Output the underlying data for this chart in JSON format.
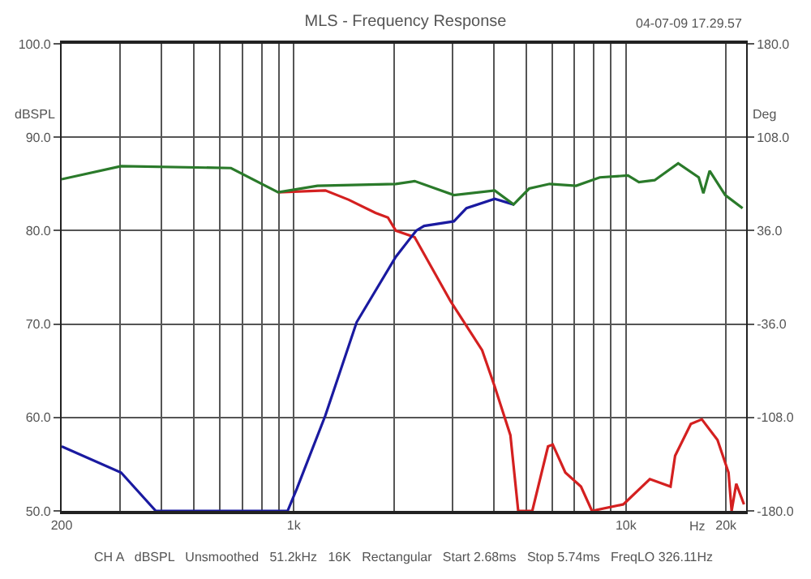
{
  "chart_data": {
    "type": "line",
    "title": "MLS - Frequency Response",
    "xlabel": "Hz",
    "ylabel": "dBSPL",
    "y2label": "Deg",
    "annotations": [
      "04-07-09 17.29.57",
      "CH A   dBSPL   Unsmoothed   51.2kHz   16K   Rectangular   Start 2.68ms   Stop 5.74ms   FreqLO 326.11Hz"
    ],
    "log": "x",
    "grid": true,
    "marker": "none",
    "line_style": "solid",
    "xlim": [
      200,
      23000
    ],
    "xticks": [
      200,
      {
        "value": 300,
        "label": null
      },
      {
        "value": 400,
        "label": null
      },
      {
        "value": 500,
        "label": null
      },
      {
        "value": 600,
        "label": null
      },
      {
        "value": 700,
        "label": null
      },
      {
        "value": 800,
        "label": null
      },
      {
        "value": 900,
        "label": null
      },
      {
        "value": 1000,
        "label": "1k"
      },
      {
        "value": 2000,
        "label": null
      },
      {
        "value": 3000,
        "label": null
      },
      {
        "value": 4000,
        "label": null
      },
      {
        "value": 5000,
        "label": null
      },
      {
        "value": 6000,
        "label": null
      },
      {
        "value": 7000,
        "label": null
      },
      {
        "value": 8000,
        "label": null
      },
      {
        "value": 9000,
        "label": null
      },
      {
        "value": 10000,
        "label": "10k"
      },
      {
        "value": 20000,
        "label": "20k"
      }
    ],
    "ylim": [
      50,
      100
    ],
    "yticks": [
      {
        "value": 50,
        "label": "50.0"
      },
      {
        "value": 60,
        "label": "60.0"
      },
      {
        "value": 70,
        "label": "70.0"
      },
      {
        "value": 80,
        "label": "80.0"
      },
      {
        "value": 90,
        "label": "90.0"
      },
      {
        "value": 100,
        "label": "100.0"
      }
    ],
    "y2lim": [
      -180,
      180
    ],
    "y2ticks": [
      {
        "value": -180,
        "label": "-180.0"
      },
      {
        "value": -108,
        "label": "-108.0"
      },
      {
        "value": -36,
        "label": "-36.0"
      },
      {
        "value": 36,
        "label": "36.0"
      },
      {
        "value": 108,
        "label": "108.0"
      },
      {
        "value": 180,
        "label": "180.0"
      }
    ],
    "series": [
      {
        "color": "#d42020",
        "x": [
          897,
          1244,
          1464,
          1761,
          1920,
          2028,
          2311,
          2969,
          3690,
          4026,
          4488,
          4738,
          5224,
          5826,
          6020,
          6568,
          7320,
          7900,
          9820,
          11800,
          13620,
          14060,
          15680,
          16920,
          18860,
          20360,
          20800,
          21480,
          22660
        ],
        "values": [
          84.1,
          84.3,
          83.3,
          81.9,
          81.4,
          80,
          79.3,
          72.4,
          67.2,
          63.3,
          58.1,
          50,
          50,
          56.9,
          57.1,
          54.1,
          52.6,
          50,
          50.7,
          53.4,
          52.6,
          55.9,
          59.3,
          59.8,
          57.6,
          54.1,
          50,
          52.9,
          50.7
        ]
      },
      {
        "color": "#1a1aa0",
        "x": [
          200,
          302,
          384,
          958,
          1022,
          1244,
          1546,
          2028,
          2336,
          2468,
          3034,
          3310,
          4026,
          4588
        ],
        "values": [
          56.9,
          54.1,
          50,
          50,
          52.4,
          60.2,
          70.2,
          77.2,
          80,
          80.5,
          81,
          82.4,
          83.4,
          82.8
        ]
      },
      {
        "color": "#2a7a2a",
        "x": [
          200,
          302,
          647,
          897,
          1178,
          2028,
          2311,
          3034,
          4026,
          4588,
          5112,
          5890,
          7080,
          8340,
          10140,
          10940,
          12200,
          14360,
          16560,
          17100,
          17860,
          19900,
          22440
        ],
        "values": [
          85.5,
          86.9,
          86.7,
          84.1,
          84.8,
          85,
          85.3,
          83.8,
          84.3,
          82.8,
          84.5,
          85,
          84.8,
          85.7,
          85.9,
          85.2,
          85.4,
          87.2,
          85.7,
          84,
          86.4,
          83.8,
          82.4
        ]
      }
    ]
  }
}
